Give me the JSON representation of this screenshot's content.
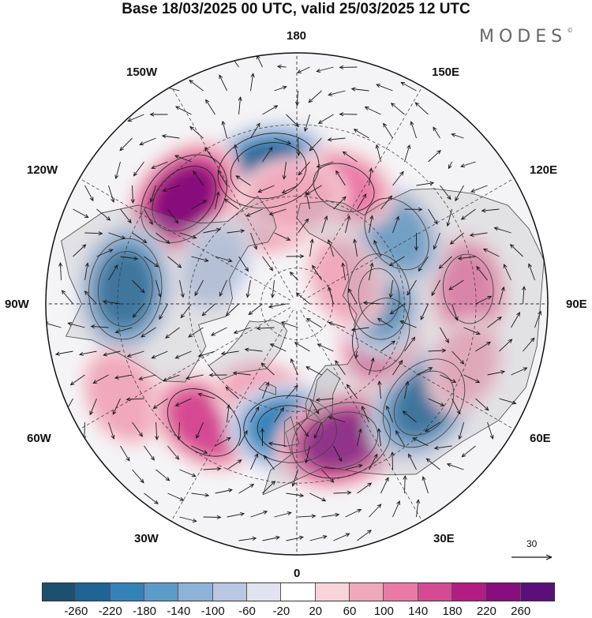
{
  "title": "Base 18/03/2025 00 UTC, valid 25/03/2025 12 UTC",
  "brand": "MODES",
  "brand_mark": "©",
  "longitude_labels": {
    "top": "180",
    "top_left": "150W",
    "top_right": "150E",
    "upper_left": "120W",
    "upper_right": "120E",
    "left": "90W",
    "right": "90E",
    "lower_left": "60W",
    "lower_right": "60E",
    "bottom_left": "30W",
    "bottom_right": "30E",
    "bottom": "0"
  },
  "vector_scale": {
    "label": "30"
  },
  "colorbar": {
    "ticks": [
      "-260",
      "-220",
      "-180",
      "-140",
      "-100",
      "-60",
      "-20",
      "20",
      "60",
      "100",
      "140",
      "180",
      "220",
      "260"
    ],
    "colors": [
      "#1d4f6e",
      "#1f6494",
      "#3382b8",
      "#5d9cc9",
      "#8fb3d8",
      "#b9c7e2",
      "#e3e3ef",
      "#ffffff",
      "#f7d3da",
      "#f0a8bd",
      "#e979a6",
      "#d54a93",
      "#b31c83",
      "#870e7c",
      "#5b0f78"
    ]
  },
  "anomaly_centers": [
    {
      "lon": -168,
      "lat": 52,
      "value": -250
    },
    {
      "lon": -133,
      "lat": 47,
      "value": 240
    },
    {
      "lon": -95,
      "lat": 42,
      "value": -245
    },
    {
      "lon": -62,
      "lat": 35,
      "value": 90
    },
    {
      "lon": -38,
      "lat": 48,
      "value": 160
    },
    {
      "lon": -18,
      "lat": 62,
      "value": 95
    },
    {
      "lon": -3,
      "lat": 55,
      "value": -210
    },
    {
      "lon": 18,
      "lat": 50,
      "value": 245
    },
    {
      "lon": 52,
      "lat": 45,
      "value": -230
    },
    {
      "lon": 70,
      "lat": 65,
      "value": 140
    },
    {
      "lon": 95,
      "lat": 42,
      "value": 120
    },
    {
      "lon": 95,
      "lat": 67,
      "value": -180
    },
    {
      "lon": 125,
      "lat": 56,
      "value": -150
    },
    {
      "lon": 158,
      "lat": 55,
      "value": 100
    },
    {
      "lon": -165,
      "lat": 65,
      "value": 80
    },
    {
      "lon": -178,
      "lat": 60,
      "value": 95
    },
    {
      "lon": 115,
      "lat": 75,
      "value": 70
    },
    {
      "lon": -115,
      "lat": 65,
      "value": -60
    },
    {
      "lon": 70,
      "lat": 40,
      "value": 60
    }
  ]
}
